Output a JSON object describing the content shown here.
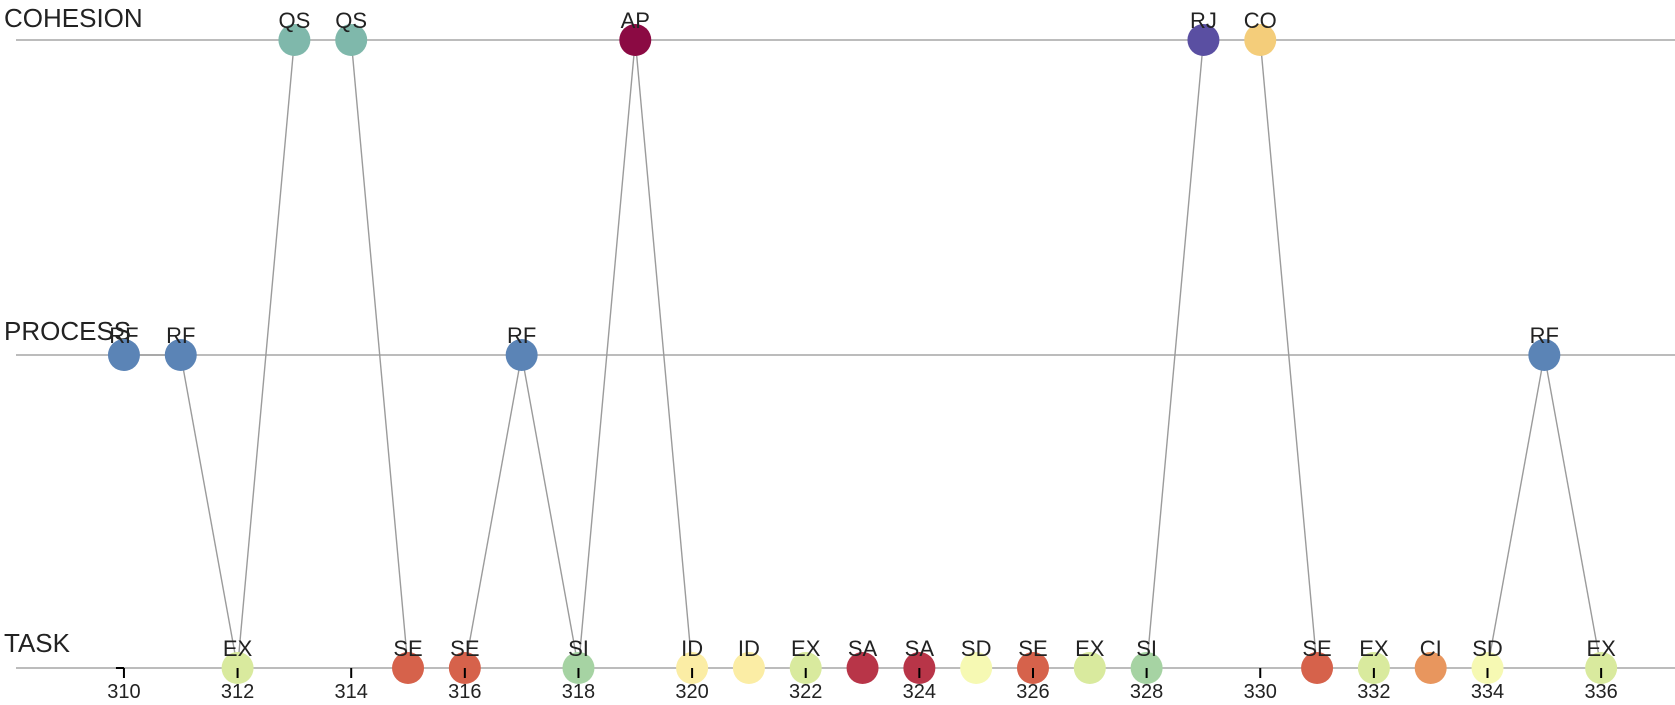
{
  "chart_data": {
    "type": "scatter",
    "title": "",
    "xlabel": "",
    "ylabel": "",
    "xlim": [
      308.1,
      337.3
    ],
    "lanes": [
      "COHESION",
      "PROCESS",
      "TASK"
    ],
    "x_ticks": [
      310,
      312,
      314,
      316,
      318,
      320,
      322,
      324,
      326,
      328,
      330,
      332,
      334,
      336
    ],
    "points": [
      {
        "x": 313,
        "lane": "COHESION",
        "label": "QS",
        "color": "#7fb8ab"
      },
      {
        "x": 314,
        "lane": "COHESION",
        "label": "QS",
        "color": "#7fb8ab"
      },
      {
        "x": 319,
        "lane": "COHESION",
        "label": "AP",
        "color": "#8b0a43"
      },
      {
        "x": 329,
        "lane": "COHESION",
        "label": "RJ",
        "color": "#5a4fa2"
      },
      {
        "x": 330,
        "lane": "COHESION",
        "label": "CO",
        "color": "#f4cd7a"
      },
      {
        "x": 310,
        "lane": "PROCESS",
        "label": "RF",
        "color": "#5b84b6"
      },
      {
        "x": 311,
        "lane": "PROCESS",
        "label": "RF",
        "color": "#5b84b6"
      },
      {
        "x": 317,
        "lane": "PROCESS",
        "label": "RF",
        "color": "#5b84b6"
      },
      {
        "x": 335,
        "lane": "PROCESS",
        "label": "RF",
        "color": "#5b84b6"
      },
      {
        "x": 312,
        "lane": "TASK",
        "label": "EX",
        "color": "#d9ea9e"
      },
      {
        "x": 315,
        "lane": "TASK",
        "label": "SE",
        "color": "#d6624b"
      },
      {
        "x": 316,
        "lane": "TASK",
        "label": "SE",
        "color": "#d6624b"
      },
      {
        "x": 318,
        "lane": "TASK",
        "label": "SI",
        "color": "#a6d3a3"
      },
      {
        "x": 320,
        "lane": "TASK",
        "label": "ID",
        "color": "#fbeda5"
      },
      {
        "x": 321,
        "lane": "TASK",
        "label": "ID",
        "color": "#fbeda5"
      },
      {
        "x": 322,
        "lane": "TASK",
        "label": "EX",
        "color": "#d9ea9e"
      },
      {
        "x": 323,
        "lane": "TASK",
        "label": "SA",
        "color": "#b83548"
      },
      {
        "x": 324,
        "lane": "TASK",
        "label": "SA",
        "color": "#b83548"
      },
      {
        "x": 325,
        "lane": "TASK",
        "label": "SD",
        "color": "#f6f9b3"
      },
      {
        "x": 326,
        "lane": "TASK",
        "label": "SE",
        "color": "#d6624b"
      },
      {
        "x": 327,
        "lane": "TASK",
        "label": "EX",
        "color": "#d9ea9e"
      },
      {
        "x": 328,
        "lane": "TASK",
        "label": "SI",
        "color": "#a6d3a3"
      },
      {
        "x": 331,
        "lane": "TASK",
        "label": "SE",
        "color": "#d6624b"
      },
      {
        "x": 332,
        "lane": "TASK",
        "label": "EX",
        "color": "#d9ea9e"
      },
      {
        "x": 333,
        "lane": "TASK",
        "label": "CI",
        "color": "#e8965e"
      },
      {
        "x": 334,
        "lane": "TASK",
        "label": "SD",
        "color": "#f6f9b3"
      },
      {
        "x": 336,
        "lane": "TASK",
        "label": "EX",
        "color": "#d9ea9e"
      }
    ],
    "links": [
      [
        310,
        311
      ],
      [
        311,
        312
      ],
      [
        312,
        313
      ],
      [
        314,
        315
      ],
      [
        316,
        317
      ],
      [
        317,
        318
      ],
      [
        318,
        319
      ],
      [
        319,
        320
      ],
      [
        328,
        329
      ],
      [
        330,
        331
      ],
      [
        334,
        335
      ],
      [
        335,
        336
      ]
    ],
    "grid": false,
    "legend": "none"
  }
}
